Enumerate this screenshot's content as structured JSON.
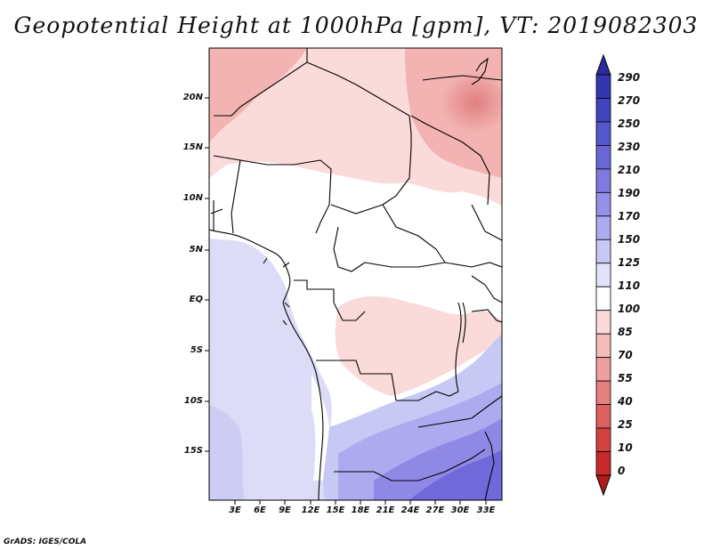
{
  "title": "Geopotential Height at 1000hPa [gpm], VT: 2019082303",
  "credit": "GrADS: IGES/COLA",
  "map": {
    "variable": "Geopotential Height",
    "level": "1000hPa",
    "units": "gpm",
    "valid_time": "2019082303",
    "lon_range": [
      0,
      35
    ],
    "lat_range": [
      -20,
      24
    ],
    "lat_ticks": [
      "20N",
      "15N",
      "10N",
      "5N",
      "EQ",
      "5S",
      "10S",
      "15S"
    ],
    "lon_ticks": [
      "3E",
      "6E",
      "9E",
      "12E",
      "15E",
      "18E",
      "21E",
      "24E",
      "27E",
      "30E",
      "33E"
    ]
  },
  "colorbar": {
    "labels": [
      "290",
      "270",
      "250",
      "230",
      "210",
      "190",
      "170",
      "150",
      "125",
      "110",
      "100",
      "85",
      "70",
      "55",
      "40",
      "25",
      "10",
      "0"
    ],
    "colors": [
      "#2b2b9e",
      "#3535b0",
      "#4343c0",
      "#5555cc",
      "#6a66d6",
      "#7f7adf",
      "#9590e8",
      "#acaaf0",
      "#c8c8f5",
      "#e2e2fa",
      "#ffffff",
      "#fbdada",
      "#f5bcbc",
      "#ee9f9f",
      "#e67f7f",
      "#de5f5f",
      "#d44141",
      "#c62a2a",
      "#b11a1a"
    ]
  }
}
